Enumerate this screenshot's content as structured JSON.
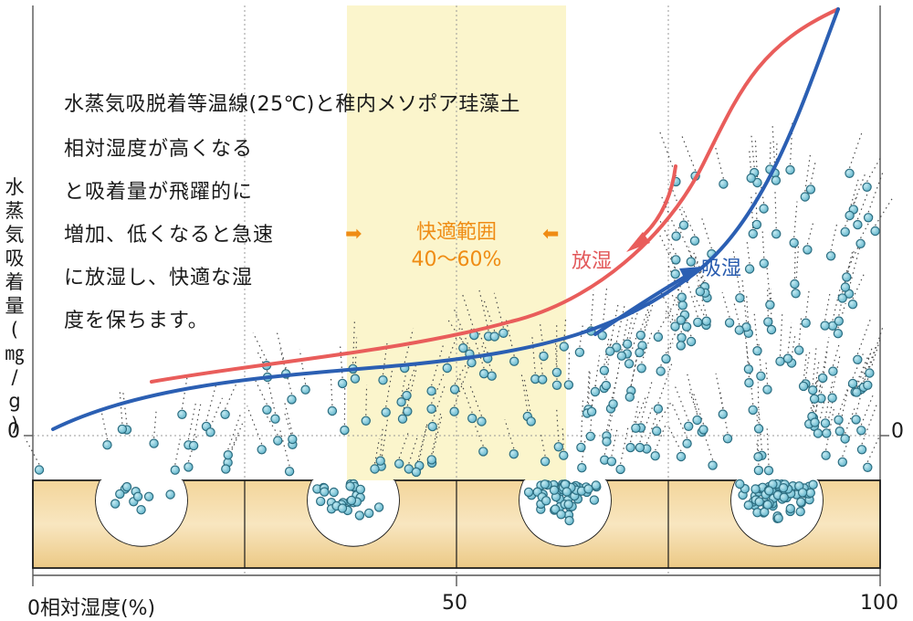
{
  "title": "水蒸気吸脱着等温線(25℃)と稚内メソポア珪藻土",
  "description_lines": [
    "相対湿度が高くなる",
    "と吸着量が飛躍的に",
    "増加、低くなると急速",
    "に放湿し、快適な湿",
    "度を保ちます。"
  ],
  "y_axis_label": "水蒸気吸着量(㎎/g)",
  "x_axis": {
    "label": "0相対湿度(%)",
    "tick_mid": "50",
    "tick_max": "100",
    "range": [
      0,
      100
    ]
  },
  "y_zero_left": "0",
  "y_zero_right": "0",
  "comfort_zone": {
    "label": "快適範囲",
    "range_text": "40〜60%",
    "range": [
      40,
      60
    ],
    "arrow_left": "➡",
    "arrow_right": "⬅"
  },
  "curves": {
    "desorption": {
      "label": "放湿",
      "color": "#e95d5b"
    },
    "adsorption": {
      "label": "吸湿",
      "color": "#2b5fb3"
    }
  },
  "colors": {
    "comfort_fill": "#fbf5cc",
    "soil_fill": "#f2d8a3",
    "particle_fill": "#7ec8da",
    "particle_stroke": "#2c6d80"
  }
}
